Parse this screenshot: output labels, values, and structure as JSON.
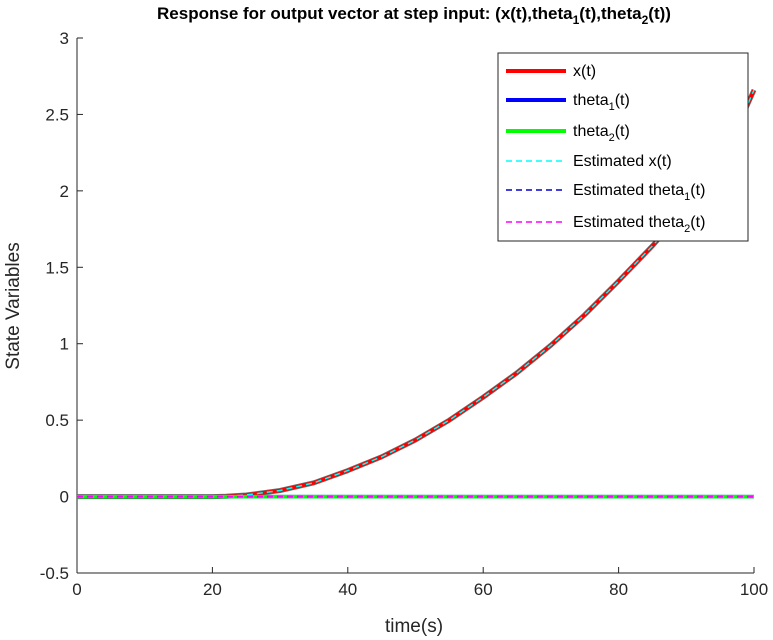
{
  "chart_data": {
    "type": "line",
    "title": {
      "prefix": "Response for output vector at step input: (x(t),theta",
      "sub1": "1",
      "mid": "(t),theta",
      "sub2": "2",
      "suffix": "(t))"
    },
    "xlabel": "time(s)",
    "ylabel": "State Variables",
    "xlim": [
      0,
      100
    ],
    "ylim": [
      -0.5,
      3
    ],
    "xticks": [
      0,
      20,
      40,
      60,
      80,
      100
    ],
    "xtick_labels": [
      "0",
      "20",
      "40",
      "60",
      "80",
      "100"
    ],
    "yticks": [
      -0.5,
      0,
      0.5,
      1,
      1.5,
      2,
      2.5,
      3
    ],
    "ytick_labels": [
      "-0.5",
      "0",
      "0.5",
      "1",
      "1.5",
      "2",
      "2.5",
      "3"
    ],
    "grid": false,
    "legend_position": "top-right",
    "x": [
      0,
      10,
      20,
      22,
      25,
      30,
      35,
      40,
      45,
      50,
      55,
      60,
      65,
      70,
      75,
      80,
      85,
      90,
      95,
      100
    ],
    "series": [
      {
        "name": "x(t)",
        "name_sub": "",
        "name_suffix": "",
        "color": "#ff0000",
        "style": "solid",
        "width": "thick",
        "values": [
          0,
          0,
          0,
          0.002,
          0.01,
          0.04,
          0.09,
          0.17,
          0.26,
          0.37,
          0.5,
          0.65,
          0.81,
          0.99,
          1.19,
          1.41,
          1.64,
          1.89,
          2.16,
          2.66
        ]
      },
      {
        "name": "theta",
        "name_sub": "1",
        "name_suffix": "(t)",
        "color": "#0000ff",
        "style": "solid",
        "width": "thick",
        "values": [
          0,
          0,
          0,
          0,
          0,
          0,
          0,
          0,
          0,
          0,
          0,
          0,
          0,
          0,
          0,
          0,
          0,
          0,
          0,
          0
        ]
      },
      {
        "name": "theta",
        "name_sub": "2",
        "name_suffix": "(t)",
        "color": "#00ff00",
        "style": "solid",
        "width": "thick",
        "values": [
          0,
          0,
          0,
          0,
          0,
          0,
          0,
          0,
          0,
          0,
          0,
          0,
          0,
          0,
          0,
          0,
          0,
          0,
          0,
          0
        ]
      },
      {
        "name": "Estimated x(t)",
        "name_sub": "",
        "name_suffix": "",
        "color": "#00ffff",
        "style": "dashed",
        "width": "thin",
        "values": [
          0,
          0,
          0,
          0.002,
          0.01,
          0.04,
          0.09,
          0.17,
          0.26,
          0.37,
          0.5,
          0.65,
          0.81,
          0.99,
          1.19,
          1.41,
          1.64,
          1.89,
          2.16,
          2.66
        ]
      },
      {
        "name": "Estimated theta",
        "name_sub": "1",
        "name_suffix": "(t)",
        "color": "#0000cc",
        "style": "dashed",
        "width": "thin",
        "values": [
          0,
          0,
          0,
          0,
          0,
          0,
          0,
          0,
          0,
          0,
          0,
          0,
          0,
          0,
          0,
          0,
          0,
          0,
          0,
          0
        ]
      },
      {
        "name": "Estimated theta",
        "name_sub": "2",
        "name_suffix": "(t)",
        "color": "#ff00ff",
        "style": "dashed",
        "width": "thin",
        "values": [
          0,
          0,
          0,
          0,
          0,
          0,
          0,
          0,
          0,
          0,
          0,
          0,
          0,
          0,
          0,
          0,
          0,
          0,
          0,
          0
        ]
      }
    ]
  }
}
